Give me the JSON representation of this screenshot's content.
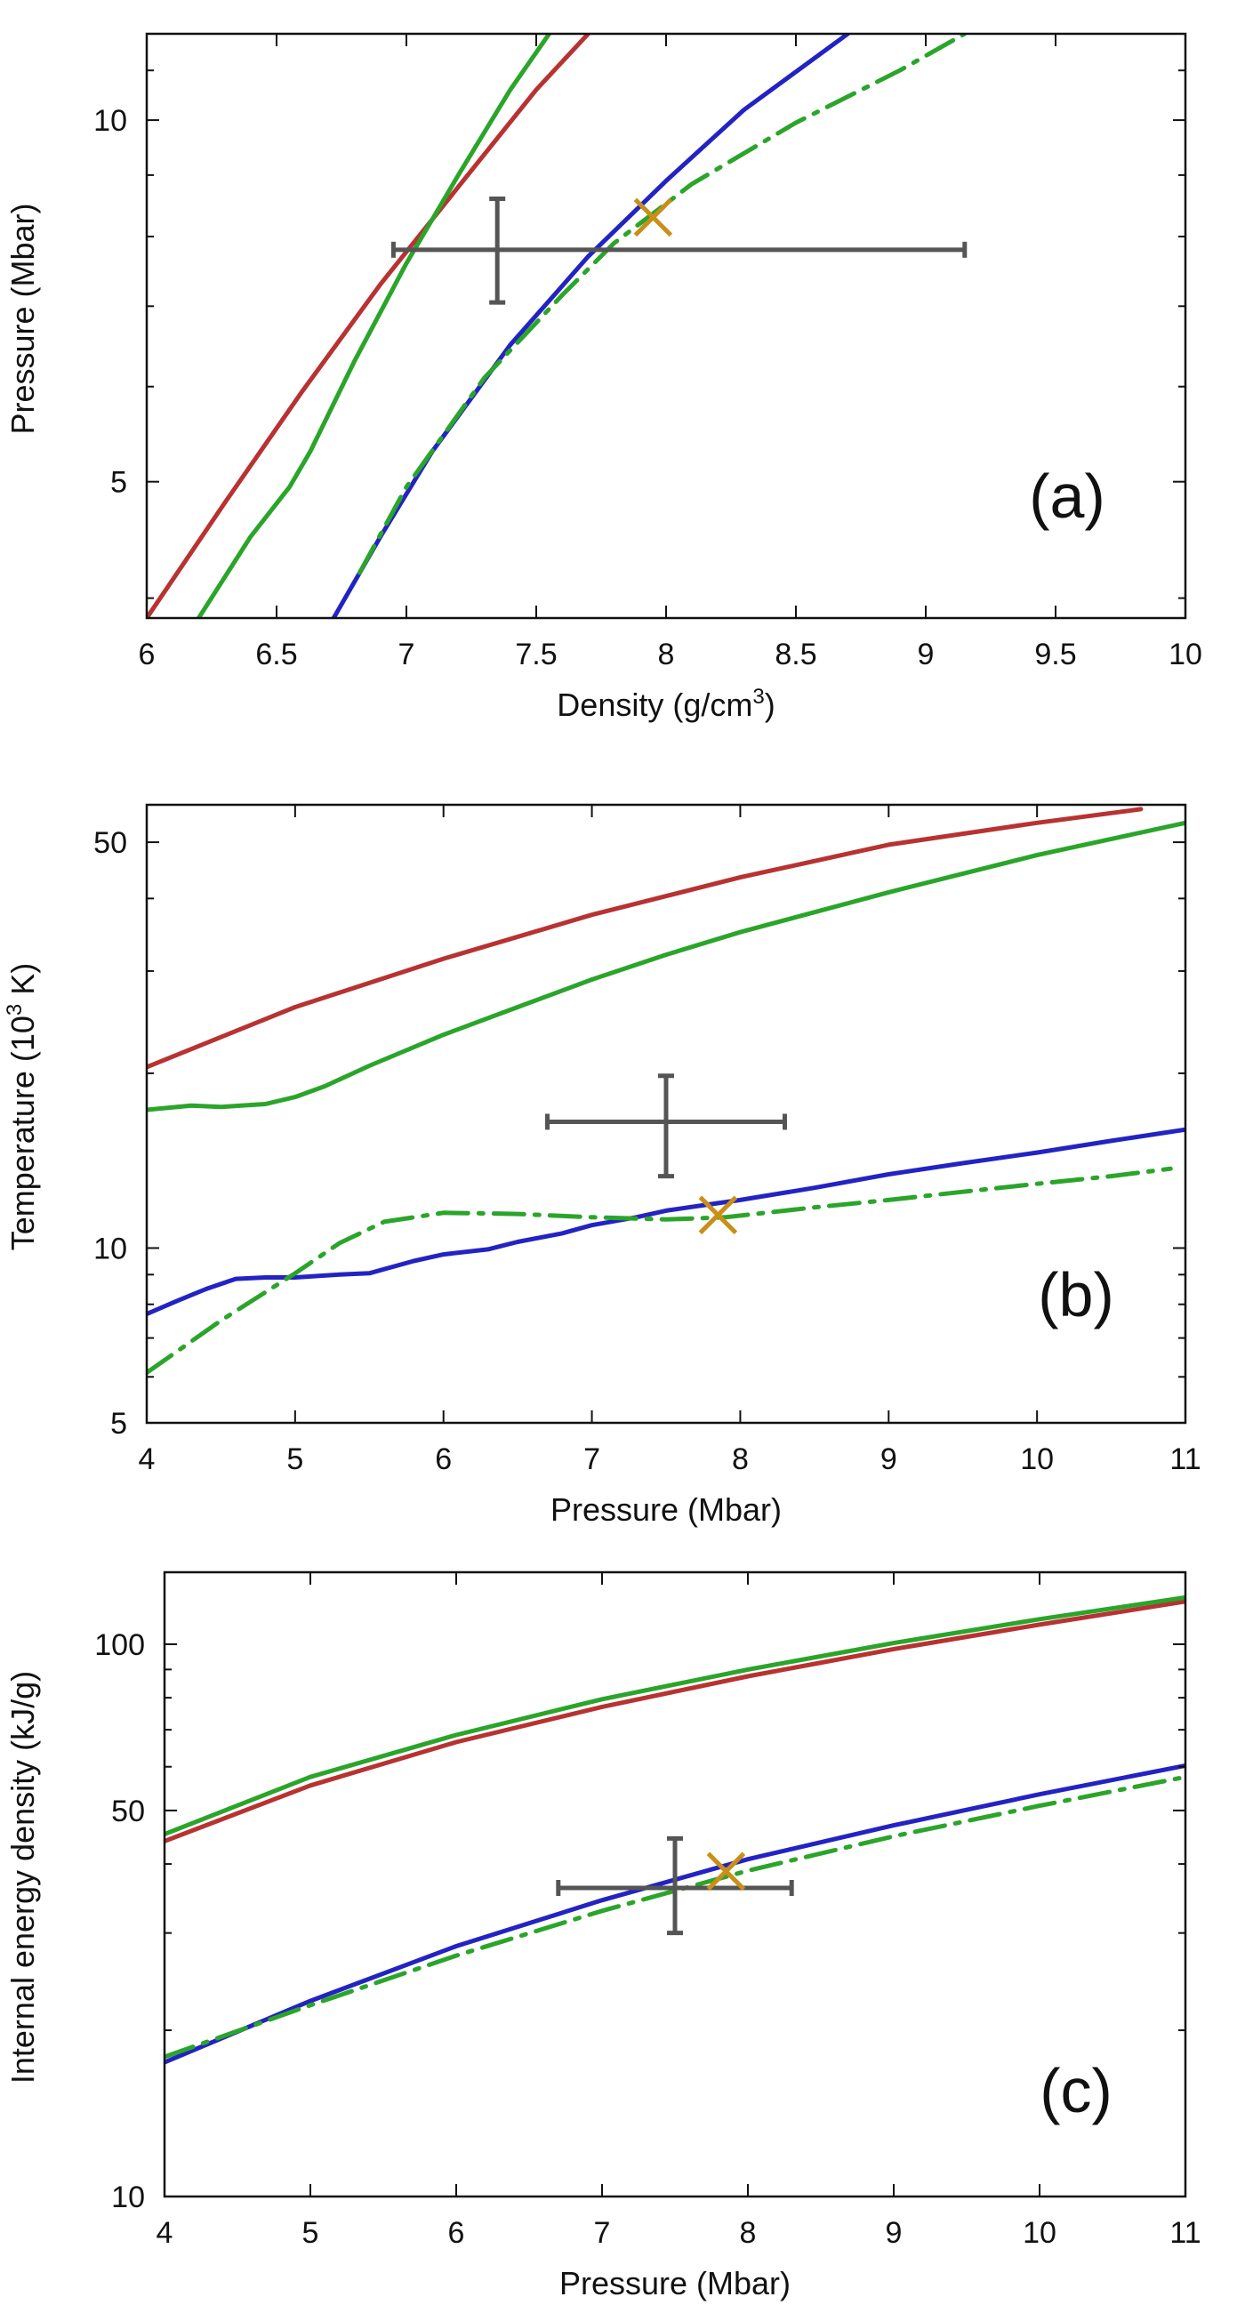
{
  "colors": {
    "red": "#b83232",
    "green": "#2aa52a",
    "blue": "#2323c4",
    "errorbar": "#555555",
    "marker": "#c98f17",
    "axis": "#111111"
  },
  "chart_data": [
    {
      "id": "a",
      "type": "line",
      "panel_label": "(a)",
      "xlabel": "Density (g/cm",
      "xlabel_sup": "3",
      "xlabel_suffix": ")",
      "ylabel": "Pressure (Mbar)",
      "xscale": "linear",
      "yscale": "log",
      "xlim": [
        6,
        10
      ],
      "ylim": [
        3.85,
        11.8
      ],
      "xticks": [
        6,
        6.5,
        7,
        7.5,
        8,
        8.5,
        9,
        9.5,
        10
      ],
      "xtick_labels": [
        "6",
        "6.5",
        "7",
        "7.5",
        "8",
        "8.5",
        "9",
        "9.5",
        "10"
      ],
      "yticks": [
        5,
        10
      ],
      "ytick_labels": [
        "5",
        "10"
      ],
      "yminor": [
        4,
        6,
        7,
        8,
        9,
        11
      ],
      "series": [
        {
          "name": "red",
          "color": "#b83232",
          "style": "solid",
          "points": [
            [
              6.0,
              3.85
            ],
            [
              6.3,
              4.8
            ],
            [
              6.6,
              5.95
            ],
            [
              6.9,
              7.3
            ],
            [
              7.2,
              8.8
            ],
            [
              7.5,
              10.6
            ],
            [
              7.7,
              11.8
            ]
          ]
        },
        {
          "name": "green",
          "color": "#2aa52a",
          "style": "solid",
          "points": [
            [
              6.2,
              3.85
            ],
            [
              6.4,
              4.5
            ],
            [
              6.55,
              4.95
            ],
            [
              6.63,
              5.3
            ],
            [
              6.8,
              6.3
            ],
            [
              7.0,
              7.6
            ],
            [
              7.2,
              9.0
            ],
            [
              7.4,
              10.6
            ],
            [
              7.55,
              11.8
            ]
          ]
        },
        {
          "name": "blue",
          "color": "#2323c4",
          "style": "solid",
          "points": [
            [
              6.72,
              3.85
            ],
            [
              6.9,
              4.5
            ],
            [
              7.1,
              5.3
            ],
            [
              7.4,
              6.5
            ],
            [
              7.7,
              7.7
            ],
            [
              8.0,
              8.9
            ],
            [
              8.3,
              10.2
            ],
            [
              8.7,
              11.8
            ]
          ]
        },
        {
          "name": "green-dashdot",
          "color": "#2aa52a",
          "style": "dashdot",
          "points": [
            [
              6.82,
              4.2
            ],
            [
              7.0,
              4.95
            ],
            [
              7.3,
              6.1
            ],
            [
              7.6,
              7.15
            ],
            [
              7.8,
              7.9
            ],
            [
              8.1,
              8.85
            ],
            [
              8.5,
              9.95
            ],
            [
              8.9,
              11.0
            ],
            [
              9.15,
              11.8
            ]
          ]
        }
      ],
      "errorbar": {
        "x": 7.35,
        "y": 7.8,
        "xerr": [
          6.95,
          9.15
        ],
        "yerr": [
          7.05,
          8.6
        ]
      },
      "marker": {
        "type": "x",
        "x": 7.95,
        "y": 8.3
      }
    },
    {
      "id": "b",
      "type": "line",
      "panel_label": "(b)",
      "xlabel": "Pressure (Mbar)",
      "ylabel": "Temperature (10",
      "ylabel_sup": "3",
      "ylabel_suffix": " K)",
      "xscale": "linear",
      "yscale": "log",
      "xlim": [
        4,
        11
      ],
      "ylim": [
        5,
        58
      ],
      "xticks": [
        4,
        5,
        6,
        7,
        8,
        9,
        10,
        11
      ],
      "xtick_labels": [
        "4",
        "5",
        "6",
        "7",
        "8",
        "9",
        "10",
        "11"
      ],
      "yticks": [
        5,
        10,
        50
      ],
      "ytick_labels": [
        "5",
        "10",
        "50"
      ],
      "yminor": [
        6,
        7,
        8,
        9,
        20,
        30,
        40
      ],
      "series": [
        {
          "name": "red",
          "color": "#b83232",
          "style": "solid",
          "points": [
            [
              4.0,
              20.5
            ],
            [
              5.0,
              26.0
            ],
            [
              6.0,
              31.5
            ],
            [
              7.0,
              37.5
            ],
            [
              8.0,
              43.5
            ],
            [
              9.0,
              49.5
            ],
            [
              10.0,
              54.0
            ],
            [
              10.7,
              57.0
            ]
          ]
        },
        {
          "name": "green",
          "color": "#2aa52a",
          "style": "solid",
          "points": [
            [
              4.0,
              17.3
            ],
            [
              4.3,
              17.6
            ],
            [
              4.5,
              17.5
            ],
            [
              4.8,
              17.7
            ],
            [
              5.0,
              18.2
            ],
            [
              5.2,
              19.0
            ],
            [
              5.5,
              20.6
            ],
            [
              6.0,
              23.3
            ],
            [
              6.5,
              26.0
            ],
            [
              7.0,
              29.0
            ],
            [
              7.5,
              32.0
            ],
            [
              8.0,
              35.0
            ],
            [
              9.0,
              41.0
            ],
            [
              10.0,
              47.5
            ],
            [
              11.0,
              54.0
            ]
          ]
        },
        {
          "name": "blue",
          "color": "#2323c4",
          "style": "solid",
          "points": [
            [
              4.0,
              7.7
            ],
            [
              4.2,
              8.1
            ],
            [
              4.4,
              8.5
            ],
            [
              4.6,
              8.85
            ],
            [
              4.8,
              8.9
            ],
            [
              5.0,
              8.9
            ],
            [
              5.3,
              9.0
            ],
            [
              5.5,
              9.05
            ],
            [
              5.8,
              9.5
            ],
            [
              6.0,
              9.75
            ],
            [
              6.3,
              9.95
            ],
            [
              6.5,
              10.25
            ],
            [
              6.8,
              10.6
            ],
            [
              7.0,
              10.95
            ],
            [
              7.3,
              11.3
            ],
            [
              7.5,
              11.6
            ],
            [
              7.8,
              11.9
            ],
            [
              8.0,
              12.1
            ],
            [
              8.5,
              12.7
            ],
            [
              9.0,
              13.4
            ],
            [
              9.5,
              14.0
            ],
            [
              10.0,
              14.6
            ],
            [
              10.5,
              15.3
            ],
            [
              11.0,
              16.0
            ]
          ]
        },
        {
          "name": "green-dashdot",
          "color": "#2aa52a",
          "style": "dashdot",
          "points": [
            [
              4.0,
              6.1
            ],
            [
              4.5,
              7.5
            ],
            [
              5.0,
              9.05
            ],
            [
              5.3,
              10.2
            ],
            [
              5.6,
              11.1
            ],
            [
              6.0,
              11.5
            ],
            [
              6.5,
              11.45
            ],
            [
              7.0,
              11.3
            ],
            [
              7.5,
              11.2
            ],
            [
              7.9,
              11.3
            ],
            [
              8.5,
              11.75
            ],
            [
              9.0,
              12.1
            ],
            [
              9.5,
              12.5
            ],
            [
              10.0,
              12.9
            ],
            [
              10.5,
              13.3
            ],
            [
              10.9,
              13.7
            ]
          ]
        }
      ],
      "errorbar": {
        "x": 7.5,
        "y": 16.5,
        "xerr": [
          6.7,
          8.3
        ],
        "yerr": [
          13.3,
          19.8
        ]
      },
      "marker": {
        "type": "x",
        "x": 7.85,
        "y": 11.4
      }
    },
    {
      "id": "c",
      "type": "line",
      "panel_label": "(c)",
      "xlabel": "Pressure (Mbar)",
      "ylabel": "Internal energy density (kJ/g)",
      "xscale": "linear",
      "yscale": "log",
      "xlim": [
        4,
        11
      ],
      "ylim": [
        10,
        135
      ],
      "xticks": [
        4,
        5,
        6,
        7,
        8,
        9,
        10,
        11
      ],
      "xtick_labels": [
        "4",
        "5",
        "6",
        "7",
        "8",
        "9",
        "10",
        "11"
      ],
      "yticks": [
        10,
        50,
        100
      ],
      "ytick_labels": [
        "10",
        "50",
        "100"
      ],
      "yminor": [
        20,
        30,
        40,
        60,
        70,
        80,
        90
      ],
      "series": [
        {
          "name": "red",
          "color": "#b83232",
          "style": "solid",
          "points": [
            [
              4.0,
              44.0
            ],
            [
              5.0,
              55.5
            ],
            [
              6.0,
              66.5
            ],
            [
              7.0,
              77.0
            ],
            [
              8.0,
              87.5
            ],
            [
              9.0,
              98.0
            ],
            [
              10.0,
              108.5
            ],
            [
              11.0,
              119.5
            ]
          ]
        },
        {
          "name": "green",
          "color": "#2aa52a",
          "style": "solid",
          "points": [
            [
              4.0,
              45.3
            ],
            [
              5.0,
              57.5
            ],
            [
              6.0,
              68.5
            ],
            [
              7.0,
              79.5
            ],
            [
              8.0,
              90.0
            ],
            [
              9.0,
              100.5
            ],
            [
              10.0,
              111.0
            ],
            [
              11.0,
              121.5
            ]
          ]
        },
        {
          "name": "blue",
          "color": "#2323c4",
          "style": "solid",
          "points": [
            [
              4.0,
              17.5
            ],
            [
              5.0,
              22.6
            ],
            [
              6.0,
              28.4
            ],
            [
              7.0,
              34.4
            ],
            [
              8.0,
              40.8
            ],
            [
              9.0,
              47.0
            ],
            [
              10.0,
              53.5
            ],
            [
              11.0,
              60.3
            ]
          ]
        },
        {
          "name": "green-dashdot",
          "color": "#2aa52a",
          "style": "dashdot",
          "points": [
            [
              4.0,
              17.9
            ],
            [
              5.0,
              22.2
            ],
            [
              6.0,
              27.3
            ],
            [
              7.0,
              32.9
            ],
            [
              8.0,
              38.9
            ],
            [
              9.0,
              44.9
            ],
            [
              10.0,
              51.0
            ],
            [
              11.0,
              57.5
            ]
          ]
        }
      ],
      "errorbar": {
        "x": 7.5,
        "y": 36.2,
        "xerr": [
          6.7,
          8.3
        ],
        "yerr": [
          30.0,
          44.5
        ]
      },
      "marker": {
        "type": "x",
        "x": 7.85,
        "y": 38.8
      }
    }
  ]
}
